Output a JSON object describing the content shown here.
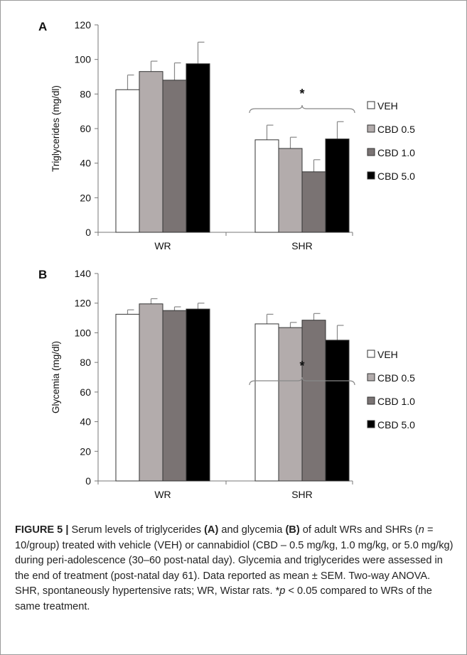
{
  "chart_data": [
    {
      "type": "bar",
      "panel_label": "A",
      "ylabel": "Triglycerides (mg/dl)",
      "ylim": [
        0,
        120
      ],
      "yticks": [
        0,
        20,
        40,
        60,
        80,
        100,
        120
      ],
      "categories": [
        "WR",
        "SHR"
      ],
      "series": [
        {
          "name": "VEH",
          "color": "#ffffff",
          "values": [
            82.5,
            53.5
          ],
          "errors": [
            8.5,
            8.5
          ]
        },
        {
          "name": "CBD 0.5",
          "color": "#b3acac",
          "values": [
            93,
            48.5
          ],
          "errors": [
            6,
            6.5
          ]
        },
        {
          "name": "CBD 1.0",
          "color": "#7a7373",
          "values": [
            88,
            35
          ],
          "errors": [
            10,
            7
          ]
        },
        {
          "name": "CBD 5.0",
          "color": "#000000",
          "values": [
            97.5,
            54
          ],
          "errors": [
            12.5,
            10
          ]
        }
      ],
      "annotation": "*",
      "legend_position": "right"
    },
    {
      "type": "bar",
      "panel_label": "B",
      "ylabel": "Glycemia (mg/dl)",
      "ylim": [
        0,
        140
      ],
      "yticks": [
        0,
        20,
        40,
        60,
        80,
        100,
        120,
        140
      ],
      "categories": [
        "WR",
        "SHR"
      ],
      "series": [
        {
          "name": "VEH",
          "color": "#ffffff",
          "values": [
            112.5,
            106
          ],
          "errors": [
            3,
            6.5
          ]
        },
        {
          "name": "CBD 0.5",
          "color": "#b3acac",
          "values": [
            119.5,
            103.5
          ],
          "errors": [
            3.5,
            3.5
          ]
        },
        {
          "name": "CBD 1.0",
          "color": "#7a7373",
          "values": [
            115,
            108.5
          ],
          "errors": [
            2.5,
            4.5
          ]
        },
        {
          "name": "CBD 5.0",
          "color": "#000000",
          "values": [
            116,
            95
          ],
          "errors": [
            4,
            10
          ]
        }
      ],
      "annotation": "*",
      "legend_position": "right"
    }
  ],
  "caption": {
    "label": "FIGURE 5 |",
    "t1": " Serum levels of triglycerides ",
    "b1": "(A)",
    "t2": " and glycemia ",
    "b2": "(B)",
    "t3": " of adult WRs and SHRs (",
    "n_italic": "n",
    "t4": " = 10/group) treated with vehicle (VEH) or cannabidiol (CBD – 0.5 mg/kg, 1.0 mg/kg, or 5.0 mg/kg) during peri-adolescence (30–60 post-natal day). Glycemia and triglycerides were assessed in the end of treatment (post-natal day 61). Data reported as mean ± SEM. Two-way ANOVA. SHR, spontaneously hypertensive rats; WR, Wistar rats. *",
    "p_italic": "p",
    "t5": " < 0.05 compared to WRs of the same treatment."
  }
}
